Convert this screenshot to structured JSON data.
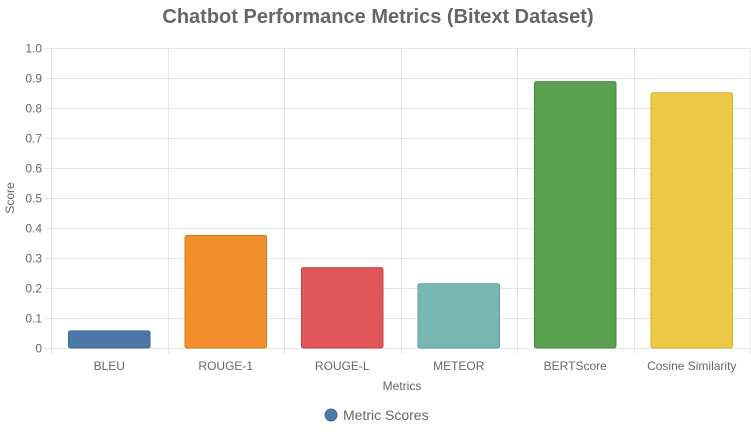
{
  "chart_data": {
    "type": "bar",
    "title": "Chatbot Performance Metrics (Bitext Dataset)",
    "xlabel": "Metrics",
    "ylabel": "Score",
    "ylim": [
      0,
      1.0
    ],
    "yticks": [
      "0",
      "0.1",
      "0.2",
      "0.3",
      "0.4",
      "0.5",
      "0.6",
      "0.7",
      "0.8",
      "0.9",
      "1.0"
    ],
    "categories": [
      "BLEU",
      "ROUGE-1",
      "ROUGE-L",
      "METEOR",
      "BERTScore",
      "Cosine Similarity"
    ],
    "series": [
      {
        "name": "Metric Scores",
        "values": [
          0.057,
          0.375,
          0.268,
          0.214,
          0.888,
          0.851
        ],
        "colors": [
          "#4e79a7",
          "#f28e2b",
          "#e15759",
          "#76b7b2",
          "#59a14f",
          "#edc948"
        ],
        "border_colors": [
          "#3f6896",
          "#d9771a",
          "#c9434a",
          "#5f9e99",
          "#468b3d",
          "#d4b132"
        ]
      }
    ],
    "grid": true,
    "legend_position": "bottom",
    "legend_marker_color": "#4e79a7"
  }
}
